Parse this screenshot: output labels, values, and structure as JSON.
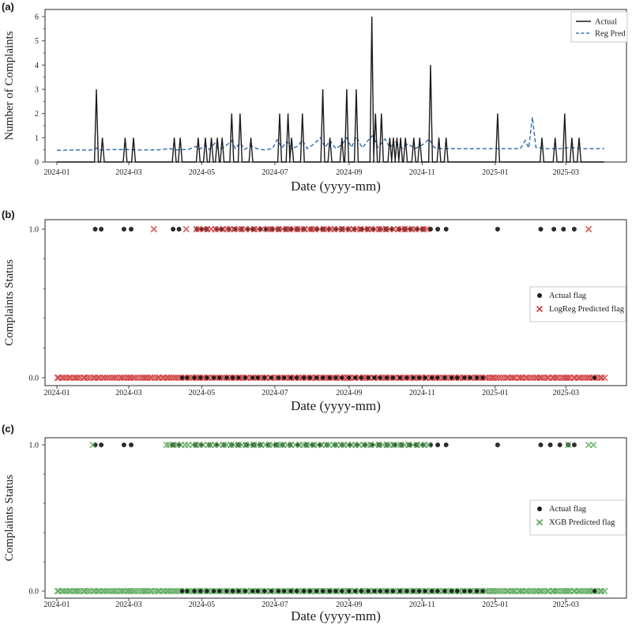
{
  "figure_labels": {
    "a": "(a)",
    "b": "(b)",
    "c": "(c)"
  },
  "axis": {
    "x_label": "Date (yyyy-mm)",
    "x_ticks": [
      "2024-01",
      "2024-03",
      "2024-05",
      "2024-07",
      "2024-09",
      "2024-11",
      "2025-01",
      "2025-03"
    ],
    "x_tick_dates": [
      "2024-01-01",
      "2024-03-01",
      "2024-05-01",
      "2024-07-01",
      "2024-09-01",
      "2024-11-01",
      "2025-01-01",
      "2025-03-01"
    ]
  },
  "colors": {
    "actual": "#1a1a1a",
    "reg_pred": "#3a72b4",
    "logreg": "#cf3d3d",
    "xgb": "#5da85d",
    "spine": "#4a4a4a"
  },
  "chart_data": [
    {
      "panel": "a",
      "type": "line",
      "ylabel": "Number of Complaints",
      "xlabel": "Date (yyyy-mm)",
      "ylim": [
        0,
        6
      ],
      "yticks": [
        "0",
        "1",
        "2",
        "3",
        "4",
        "5",
        "6"
      ],
      "x_range": [
        "2024-01-01",
        "2025-04-02"
      ],
      "legend": [
        {
          "label": "Actual",
          "marker": "line",
          "color": "#1a1a1a"
        },
        {
          "label": "Reg Pred",
          "marker": "dashed-line",
          "color": "#3a72b4"
        }
      ],
      "series": [
        {
          "name": "Actual",
          "style": "solid",
          "color": "#1a1a1a",
          "spikes": [
            [
              "2024-02-03",
              3
            ],
            [
              "2024-02-08",
              1
            ],
            [
              "2024-02-27",
              1
            ],
            [
              "2024-03-05",
              1
            ],
            [
              "2024-04-08",
              1
            ],
            [
              "2024-04-13",
              1
            ],
            [
              "2024-04-28",
              1
            ],
            [
              "2024-05-04",
              1
            ],
            [
              "2024-05-09",
              1
            ],
            [
              "2024-05-14",
              1
            ],
            [
              "2024-05-18",
              1
            ],
            [
              "2024-05-26",
              2
            ],
            [
              "2024-06-02",
              2
            ],
            [
              "2024-06-11",
              1
            ],
            [
              "2024-07-05",
              2
            ],
            [
              "2024-07-12",
              2
            ],
            [
              "2024-07-15",
              1
            ],
            [
              "2024-07-24",
              2
            ],
            [
              "2024-08-10",
              3
            ],
            [
              "2024-08-16",
              1
            ],
            [
              "2024-08-26",
              1
            ],
            [
              "2024-08-30",
              3
            ],
            [
              "2024-09-07",
              3
            ],
            [
              "2024-09-20",
              6
            ],
            [
              "2024-09-23",
              2
            ],
            [
              "2024-09-28",
              2
            ],
            [
              "2024-10-05",
              1
            ],
            [
              "2024-10-08",
              1
            ],
            [
              "2024-10-11",
              1
            ],
            [
              "2024-10-14",
              1
            ],
            [
              "2024-10-18",
              1
            ],
            [
              "2024-10-25",
              1
            ],
            [
              "2024-10-30",
              1
            ],
            [
              "2024-11-08",
              4
            ],
            [
              "2024-11-15",
              1
            ],
            [
              "2024-11-21",
              1
            ],
            [
              "2025-01-03",
              2
            ],
            [
              "2025-02-09",
              1
            ],
            [
              "2025-02-20",
              1
            ],
            [
              "2025-02-28",
              2
            ],
            [
              "2025-03-06",
              1
            ],
            [
              "2025-03-12",
              1
            ]
          ]
        },
        {
          "name": "Reg Pred",
          "style": "dashed",
          "color": "#3a72b4",
          "points": [
            [
              "2024-01-01",
              0.48
            ],
            [
              "2024-01-20",
              0.5
            ],
            [
              "2024-02-01",
              0.5
            ],
            [
              "2024-02-03",
              0.58
            ],
            [
              "2024-02-06",
              0.5
            ],
            [
              "2024-02-25",
              0.52
            ],
            [
              "2024-03-10",
              0.5
            ],
            [
              "2024-03-25",
              0.5
            ],
            [
              "2024-04-05",
              0.55
            ],
            [
              "2024-04-09",
              0.5
            ],
            [
              "2024-04-20",
              0.52
            ],
            [
              "2024-04-26",
              0.65
            ],
            [
              "2024-04-29",
              0.52
            ],
            [
              "2024-05-04",
              0.7
            ],
            [
              "2024-05-07",
              0.52
            ],
            [
              "2024-05-12",
              0.78
            ],
            [
              "2024-05-15",
              0.52
            ],
            [
              "2024-05-20",
              0.62
            ],
            [
              "2024-05-26",
              0.88
            ],
            [
              "2024-05-29",
              0.55
            ],
            [
              "2024-06-02",
              0.8
            ],
            [
              "2024-06-06",
              0.52
            ],
            [
              "2024-06-11",
              0.68
            ],
            [
              "2024-06-16",
              0.55
            ],
            [
              "2024-06-22",
              0.5
            ],
            [
              "2024-06-29",
              0.55
            ],
            [
              "2024-07-03",
              0.92
            ],
            [
              "2024-07-07",
              0.58
            ],
            [
              "2024-07-11",
              0.85
            ],
            [
              "2024-07-15",
              0.55
            ],
            [
              "2024-07-20",
              0.65
            ],
            [
              "2024-07-24",
              0.9
            ],
            [
              "2024-07-28",
              0.55
            ],
            [
              "2024-08-03",
              0.75
            ],
            [
              "2024-08-08",
              1.0
            ],
            [
              "2024-08-12",
              0.6
            ],
            [
              "2024-08-16",
              0.88
            ],
            [
              "2024-08-21",
              0.55
            ],
            [
              "2024-08-26",
              0.72
            ],
            [
              "2024-08-30",
              1.0
            ],
            [
              "2024-09-03",
              0.6
            ],
            [
              "2024-09-07",
              1.05
            ],
            [
              "2024-09-12",
              0.58
            ],
            [
              "2024-09-17",
              0.9
            ],
            [
              "2024-09-21",
              1.1
            ],
            [
              "2024-09-25",
              0.6
            ],
            [
              "2024-10-01",
              0.95
            ],
            [
              "2024-10-05",
              0.6
            ],
            [
              "2024-10-10",
              0.82
            ],
            [
              "2024-10-15",
              0.55
            ],
            [
              "2024-10-20",
              0.75
            ],
            [
              "2024-10-26",
              0.55
            ],
            [
              "2024-11-01",
              0.7
            ],
            [
              "2024-11-07",
              0.95
            ],
            [
              "2024-11-11",
              0.6
            ],
            [
              "2024-11-17",
              0.55
            ],
            [
              "2024-11-26",
              0.55
            ],
            [
              "2024-12-10",
              0.55
            ],
            [
              "2024-12-25",
              0.55
            ],
            [
              "2025-01-10",
              0.55
            ],
            [
              "2025-01-22",
              0.55
            ],
            [
              "2025-01-26",
              0.88
            ],
            [
              "2025-01-29",
              0.58
            ],
            [
              "2025-02-01",
              1.85
            ],
            [
              "2025-02-04",
              0.6
            ],
            [
              "2025-02-12",
              0.55
            ],
            [
              "2025-02-25",
              0.55
            ],
            [
              "2025-03-05",
              0.6
            ],
            [
              "2025-03-15",
              0.55
            ],
            [
              "2025-04-02",
              0.55
            ]
          ]
        }
      ]
    },
    {
      "panel": "b",
      "type": "scatter",
      "ylabel": "Complaints Status",
      "xlabel": "Date (yyyy-mm)",
      "yticks": [
        "0.0",
        "1.0"
      ],
      "legend": [
        {
          "label": "Actual flag",
          "marker": "dot",
          "color": "#1a1a1a"
        },
        {
          "label": "LogReg Predicted flag",
          "marker": "x",
          "color": "#cf3d3d"
        }
      ],
      "rows": {
        "one_actual": [
          [
            "2024-02-02",
            "2024-02-02",
            1
          ],
          [
            "2024-02-07",
            "2024-02-07",
            1
          ],
          [
            "2024-02-26",
            "2024-02-26",
            1
          ],
          [
            "2024-03-03",
            "2024-03-03",
            1
          ],
          [
            "2024-04-07",
            "2024-04-07",
            1
          ],
          [
            "2024-04-12",
            "2024-04-12",
            1
          ],
          [
            "2024-04-27",
            "2024-04-27",
            1
          ],
          [
            "2024-05-01",
            "2024-05-01",
            1
          ],
          [
            "2024-05-05",
            "2024-05-05",
            1
          ],
          [
            "2024-05-13",
            "2024-11-02",
            34
          ],
          [
            "2024-11-08",
            "2024-11-08",
            1
          ],
          [
            "2024-11-14",
            "2024-11-14",
            1
          ],
          [
            "2024-11-21",
            "2024-11-21",
            1
          ],
          [
            "2025-01-03",
            "2025-01-03",
            1
          ],
          [
            "2025-02-08",
            "2025-02-08",
            1
          ],
          [
            "2025-02-19",
            "2025-02-19",
            1
          ],
          [
            "2025-02-27",
            "2025-02-27",
            1
          ],
          [
            "2025-03-08",
            "2025-03-08",
            1
          ]
        ],
        "one_pred": [
          [
            "2024-03-22",
            "2024-03-22",
            1
          ],
          [
            "2024-04-18",
            "2024-04-18",
            1
          ],
          [
            "2024-04-26",
            "2024-06-20",
            18
          ],
          [
            "2024-06-25",
            "2024-11-05",
            44
          ],
          [
            "2025-03-20",
            "2025-03-20",
            1
          ]
        ],
        "zero_actual": [
          [
            "2024-04-14",
            "2024-12-22",
            48
          ],
          [
            "2025-03-25",
            "2025-03-25",
            1
          ]
        ],
        "zero_pred": [
          [
            "2024-01-01",
            "2025-04-02",
            230
          ]
        ]
      }
    },
    {
      "panel": "c",
      "type": "scatter",
      "ylabel": "Complaints Status",
      "xlabel": "Date (yyyy-mm)",
      "yticks": [
        "0.0",
        "1.0"
      ],
      "legend": [
        {
          "label": "Actual flag",
          "marker": "dot",
          "color": "#1a1a1a"
        },
        {
          "label": "XGB Predicted flag",
          "marker": "x",
          "color": "#5da85d"
        }
      ],
      "rows": {
        "one_actual": [
          [
            "2024-02-02",
            "2024-02-02",
            1
          ],
          [
            "2024-02-07",
            "2024-02-07",
            1
          ],
          [
            "2024-02-26",
            "2024-02-26",
            1
          ],
          [
            "2024-03-03",
            "2024-03-03",
            1
          ],
          [
            "2024-04-07",
            "2024-04-07",
            1
          ],
          [
            "2024-04-12",
            "2024-04-12",
            1
          ],
          [
            "2024-04-25",
            "2024-11-02",
            32
          ],
          [
            "2024-11-08",
            "2024-11-08",
            1
          ],
          [
            "2024-11-14",
            "2024-11-14",
            1
          ],
          [
            "2024-11-21",
            "2024-11-21",
            1
          ],
          [
            "2025-01-03",
            "2025-01-03",
            1
          ],
          [
            "2025-02-08",
            "2025-02-08",
            1
          ],
          [
            "2025-02-16",
            "2025-02-16",
            1
          ],
          [
            "2025-02-24",
            "2025-02-24",
            1
          ],
          [
            "2025-03-03",
            "2025-03-03",
            1
          ],
          [
            "2025-03-08",
            "2025-03-08",
            1
          ]
        ],
        "one_pred": [
          [
            "2024-01-31",
            "2024-01-31",
            1
          ],
          [
            "2024-04-01",
            "2024-11-06",
            70
          ],
          [
            "2025-03-03",
            "2025-03-03",
            1
          ],
          [
            "2025-03-20",
            "2025-03-20",
            1
          ],
          [
            "2025-03-24",
            "2025-03-24",
            1
          ]
        ],
        "zero_actual": [
          [
            "2024-04-14",
            "2024-12-22",
            48
          ],
          [
            "2025-03-25",
            "2025-03-25",
            1
          ]
        ],
        "zero_pred": [
          [
            "2024-01-01",
            "2025-04-02",
            230
          ]
        ]
      }
    }
  ]
}
